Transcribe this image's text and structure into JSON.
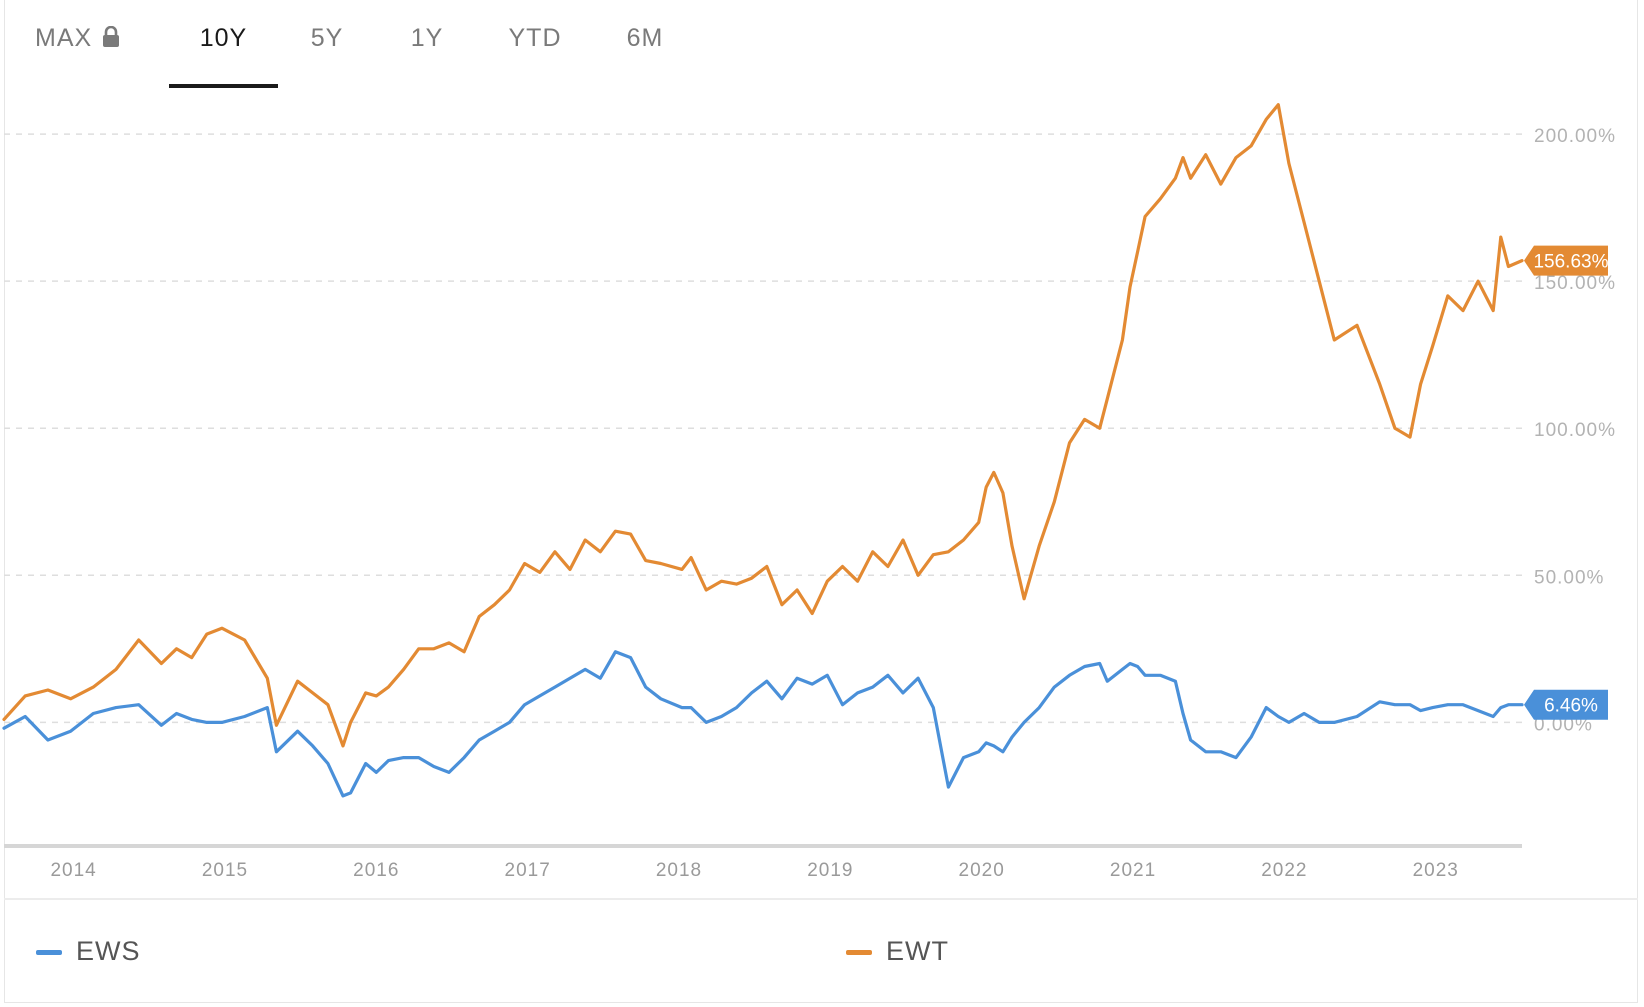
{
  "tabs": [
    {
      "label": "MAX",
      "locked": true,
      "active": false
    },
    {
      "label": "10Y",
      "locked": false,
      "active": true
    },
    {
      "label": "5Y",
      "locked": false,
      "active": false
    },
    {
      "label": "1Y",
      "locked": false,
      "active": false
    },
    {
      "label": "YTD",
      "locked": false,
      "active": false
    },
    {
      "label": "6M",
      "locked": false,
      "active": false
    }
  ],
  "legend": [
    {
      "name": "EWS",
      "color": "#4a90d9"
    },
    {
      "name": "EWT",
      "color": "#e38a33"
    }
  ],
  "chart_data": {
    "type": "line",
    "title": "",
    "xlabel": "",
    "ylabel": "",
    "x_range": [
      2013.56,
      2023.59
    ],
    "ylim": [
      -40,
      215
    ],
    "yticks": [
      0,
      50,
      100,
      150,
      200
    ],
    "ytick_labels": [
      "0.00%",
      "50.00%",
      "100.00%",
      "150.00%",
      "200.00%"
    ],
    "xticks": [
      2014,
      2015,
      2016,
      2017,
      2018,
      2019,
      2020,
      2021,
      2022,
      2023
    ],
    "xtick_labels": [
      "2014",
      "2015",
      "2016",
      "2017",
      "2018",
      "2019",
      "2020",
      "2021",
      "2022",
      "2023"
    ],
    "grid": "horizontal dashed",
    "series": [
      {
        "name": "EWT",
        "color": "#e38a33",
        "last_label": "156.63%",
        "x": [
          2013.56,
          2013.7,
          2013.85,
          2014.0,
          2014.15,
          2014.3,
          2014.45,
          2014.6,
          2014.7,
          2014.8,
          2014.9,
          2015.0,
          2015.15,
          2015.3,
          2015.36,
          2015.5,
          2015.6,
          2015.7,
          2015.8,
          2015.85,
          2015.95,
          2016.02,
          2016.1,
          2016.2,
          2016.3,
          2016.4,
          2016.5,
          2016.6,
          2016.7,
          2016.8,
          2016.9,
          2017.0,
          2017.1,
          2017.2,
          2017.3,
          2017.4,
          2017.5,
          2017.6,
          2017.7,
          2017.8,
          2017.9,
          2018.04,
          2018.1,
          2018.2,
          2018.3,
          2018.4,
          2018.5,
          2018.6,
          2018.7,
          2018.8,
          2018.9,
          2019.0,
          2019.1,
          2019.2,
          2019.3,
          2019.4,
          2019.5,
          2019.6,
          2019.7,
          2019.8,
          2019.9,
          2020.0,
          2020.05,
          2020.1,
          2020.16,
          2020.22,
          2020.3,
          2020.4,
          2020.5,
          2020.6,
          2020.7,
          2020.8,
          2020.85,
          2020.95,
          2021.0,
          2021.05,
          2021.1,
          2021.2,
          2021.3,
          2021.35,
          2021.4,
          2021.5,
          2021.6,
          2021.7,
          2021.8,
          2021.9,
          2021.98,
          2022.05,
          2022.15,
          2022.25,
          2022.35,
          2022.5,
          2022.65,
          2022.75,
          2022.85,
          2022.92,
          2023.0,
          2023.1,
          2023.2,
          2023.3,
          2023.4,
          2023.45,
          2023.5,
          2023.59
        ],
        "values": [
          1,
          9,
          11,
          8,
          12,
          18,
          28,
          20,
          25,
          22,
          30,
          32,
          28,
          15,
          -1,
          14,
          10,
          6,
          -8,
          0,
          10,
          9,
          12,
          18,
          25,
          25,
          27,
          24,
          36,
          40,
          45,
          54,
          51,
          58,
          52,
          62,
          58,
          65,
          64,
          55,
          54,
          52,
          56,
          45,
          48,
          47,
          49,
          53,
          40,
          45,
          37,
          48,
          53,
          48,
          58,
          53,
          62,
          50,
          57,
          58,
          62,
          68,
          80,
          85,
          78,
          60,
          42,
          60,
          75,
          95,
          103,
          100,
          110,
          130,
          148,
          160,
          172,
          178,
          185,
          192,
          185,
          193,
          183,
          192,
          196,
          205,
          210,
          190,
          170,
          150,
          130,
          135,
          115,
          100,
          97,
          115,
          128,
          145,
          140,
          150,
          140,
          165,
          155,
          157
        ]
      },
      {
        "name": "EWS",
        "color": "#4a90d9",
        "last_label": "6.46%",
        "x": [
          2013.56,
          2013.7,
          2013.85,
          2014.0,
          2014.15,
          2014.3,
          2014.45,
          2014.6,
          2014.7,
          2014.8,
          2014.9,
          2015.0,
          2015.15,
          2015.3,
          2015.36,
          2015.5,
          2015.6,
          2015.7,
          2015.8,
          2015.85,
          2015.95,
          2016.02,
          2016.1,
          2016.2,
          2016.3,
          2016.4,
          2016.5,
          2016.6,
          2016.7,
          2016.8,
          2016.9,
          2017.0,
          2017.1,
          2017.2,
          2017.3,
          2017.4,
          2017.5,
          2017.6,
          2017.7,
          2017.8,
          2017.9,
          2018.04,
          2018.1,
          2018.2,
          2018.3,
          2018.4,
          2018.5,
          2018.6,
          2018.7,
          2018.8,
          2018.9,
          2019.0,
          2019.1,
          2019.2,
          2019.3,
          2019.4,
          2019.5,
          2019.6,
          2019.7,
          2019.8,
          2019.9,
          2020.0,
          2020.05,
          2020.1,
          2020.16,
          2020.22,
          2020.3,
          2020.4,
          2020.5,
          2020.6,
          2020.7,
          2020.8,
          2020.85,
          2020.95,
          2021.0,
          2021.05,
          2021.1,
          2021.2,
          2021.3,
          2021.35,
          2021.4,
          2021.5,
          2021.6,
          2021.7,
          2021.8,
          2021.9,
          2021.98,
          2022.05,
          2022.15,
          2022.25,
          2022.35,
          2022.5,
          2022.65,
          2022.75,
          2022.85,
          2022.92,
          2023.0,
          2023.1,
          2023.2,
          2023.3,
          2023.4,
          2023.45,
          2023.5,
          2023.59
        ],
        "values": [
          -2,
          2,
          -6,
          -3,
          3,
          5,
          6,
          -1,
          3,
          1,
          0,
          0,
          2,
          5,
          -10,
          -3,
          -8,
          -14,
          -25,
          -24,
          -14,
          -17,
          -13,
          -12,
          -12,
          -15,
          -17,
          -12,
          -6,
          -3,
          0,
          6,
          9,
          12,
          15,
          18,
          15,
          24,
          22,
          12,
          8,
          5,
          5,
          0,
          2,
          5,
          10,
          14,
          8,
          15,
          13,
          16,
          6,
          10,
          12,
          16,
          10,
          15,
          5,
          -22,
          -12,
          -10,
          -7,
          -8,
          -10,
          -5,
          0,
          5,
          12,
          16,
          19,
          20,
          14,
          18,
          20,
          19,
          16,
          16,
          14,
          3,
          -6,
          -10,
          -10,
          -12,
          -5,
          5,
          2,
          0,
          3,
          0,
          0,
          2,
          7,
          6,
          6,
          4,
          5,
          6,
          6,
          4,
          2,
          5,
          6,
          6
        ]
      }
    ]
  }
}
